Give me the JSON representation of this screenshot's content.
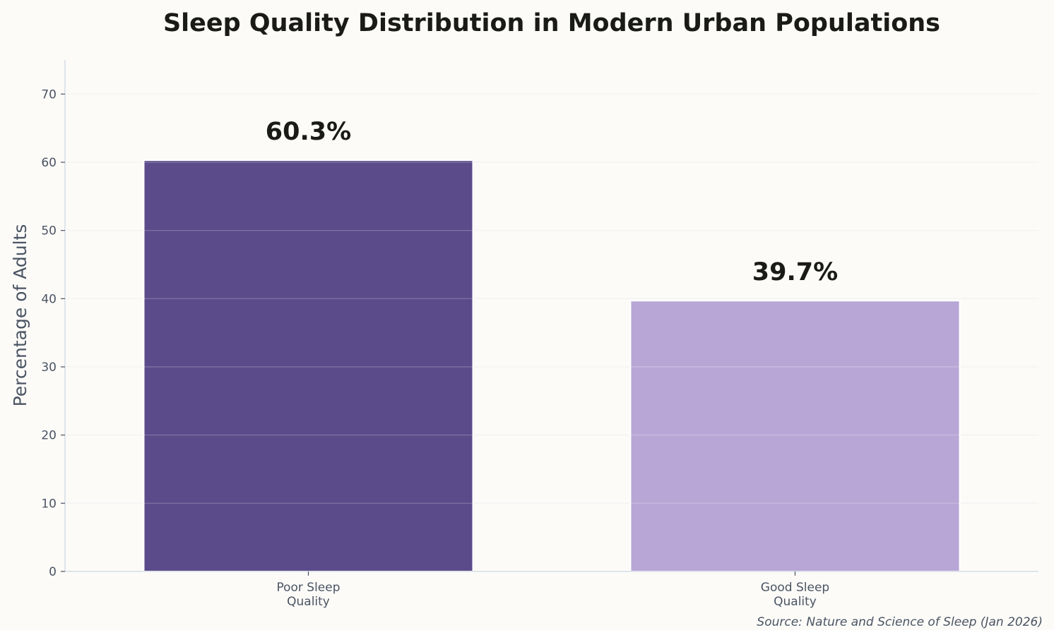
{
  "chart_data": {
    "type": "bar",
    "title": "Sleep Quality Distribution in Modern Urban Populations",
    "xlabel": "",
    "ylabel": "Percentage of Adults",
    "categories": [
      [
        "Poor Sleep",
        "Quality"
      ],
      [
        "Good Sleep",
        "Quality"
      ]
    ],
    "values": [
      60.3,
      39.7
    ],
    "data_labels": [
      "60.3%",
      "39.7%"
    ],
    "colors": [
      "#5b4b8a",
      "#b8a6d6"
    ],
    "ylim": [
      0,
      75
    ],
    "yticks": [
      0,
      10,
      20,
      30,
      40,
      50,
      60,
      70
    ],
    "grid": true,
    "source": "Source: Nature and Science of Sleep (Jan 2026)"
  }
}
